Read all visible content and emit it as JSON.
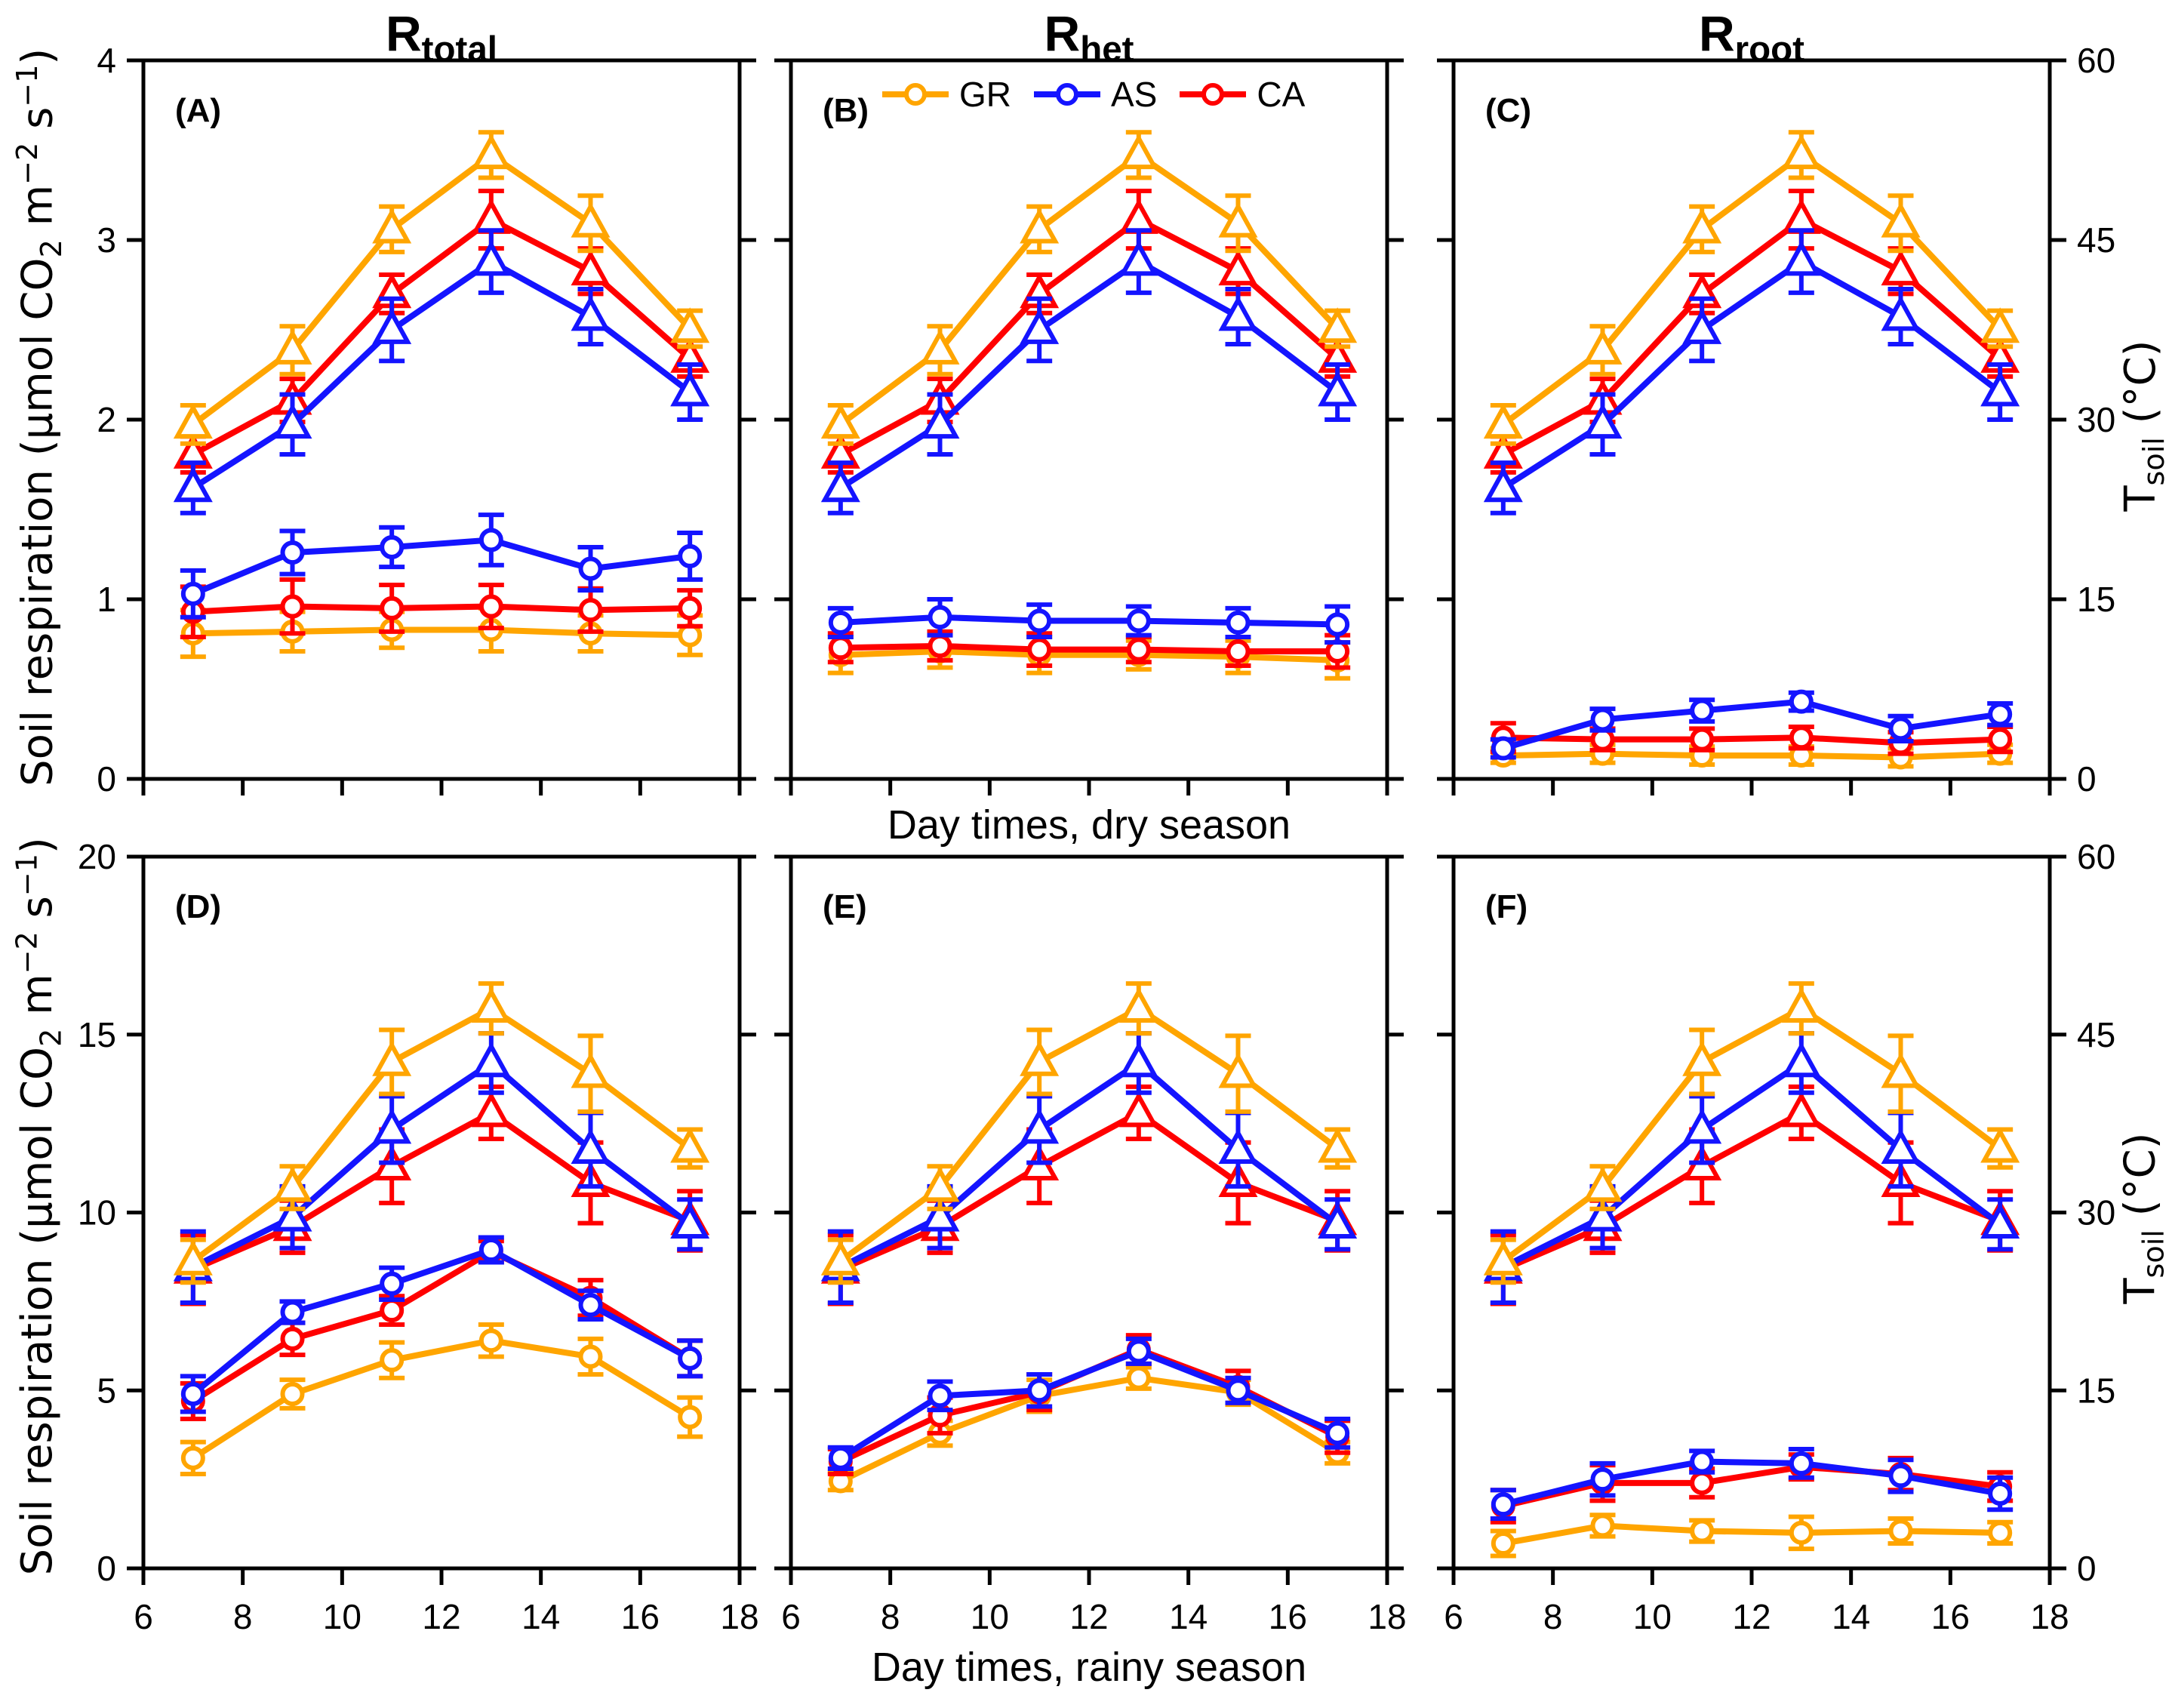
{
  "figure": {
    "column_titles": [
      {
        "base": "R",
        "sub": "total"
      },
      {
        "base": "R",
        "sub": "het"
      },
      {
        "base": "R",
        "sub": "root"
      }
    ],
    "row_captions": {
      "dry": "Day times, dry season",
      "rainy": "Day times, rainy season"
    },
    "left_axis_title_segments": [
      {
        "t": "Soil respiration (μmol CO"
      },
      {
        "sub": "2"
      },
      {
        "t": " m"
      },
      {
        "sup": "−2"
      },
      {
        "t": " s"
      },
      {
        "sup": "−1"
      },
      {
        "t": ")"
      }
    ],
    "right_axis_title_segments": [
      {
        "t": "T"
      },
      {
        "sub": "soil"
      },
      {
        "t": " (°C)"
      }
    ]
  },
  "legend": {
    "items": [
      {
        "label": "GR",
        "color": "#FFA500"
      },
      {
        "label": "AS",
        "color": "#1414FF"
      },
      {
        "label": "CA",
        "color": "#FF0000"
      }
    ]
  },
  "colors": {
    "GR": "#FFA500",
    "AS": "#1414FF",
    "CA": "#FF0000",
    "axis": "#000000"
  },
  "chart_data": [
    {
      "type": "line",
      "panel_label": "(A)",
      "season": "dry",
      "measure": "R_total",
      "x": [
        7,
        9,
        11,
        13,
        15,
        17
      ],
      "xlim": [
        6,
        18
      ],
      "x_ticks": [
        6,
        8,
        10,
        12,
        14,
        16,
        18
      ],
      "x_tick_labels_visible": false,
      "left_axis": {
        "lim": [
          0,
          4
        ],
        "ticks": [
          0,
          1,
          2,
          3,
          4
        ],
        "labels_visible": true
      },
      "right_axis": {
        "lim": [
          0,
          60
        ],
        "ticks": [
          0,
          15,
          30,
          45,
          60
        ],
        "labels_visible": false
      },
      "series": [
        {
          "name": "CA",
          "axis": "right",
          "marker": "triangle",
          "values": [
            27.1,
            31.6,
            40.5,
            46.7,
            42.4,
            35.1
          ],
          "errors": [
            1.5,
            1.8,
            1.6,
            2.4,
            1.9,
            1.5
          ]
        },
        {
          "name": "AS",
          "axis": "right",
          "marker": "triangle",
          "values": [
            24.3,
            29.6,
            37.5,
            43.2,
            38.6,
            32.3
          ],
          "errors": [
            2.1,
            2.5,
            2.6,
            2.6,
            2.3,
            2.3
          ]
        },
        {
          "name": "GR",
          "axis": "right",
          "marker": "triangle",
          "values": [
            29.6,
            35.8,
            45.9,
            52.1,
            46.4,
            37.6
          ],
          "errors": [
            1.6,
            2.0,
            1.9,
            1.9,
            2.3,
            1.5
          ]
        },
        {
          "name": "GR",
          "axis": "left",
          "marker": "circle",
          "values": [
            0.81,
            0.82,
            0.83,
            0.83,
            0.81,
            0.8
          ],
          "errors": [
            0.13,
            0.11,
            0.1,
            0.12,
            0.1,
            0.11
          ]
        },
        {
          "name": "CA",
          "axis": "left",
          "marker": "circle",
          "values": [
            0.93,
            0.96,
            0.95,
            0.96,
            0.94,
            0.95
          ],
          "errors": [
            0.14,
            0.15,
            0.13,
            0.12,
            0.12,
            0.1
          ]
        },
        {
          "name": "AS",
          "axis": "left",
          "marker": "circle",
          "values": [
            1.03,
            1.26,
            1.29,
            1.33,
            1.17,
            1.24
          ],
          "errors": [
            0.13,
            0.12,
            0.11,
            0.14,
            0.12,
            0.13
          ]
        }
      ]
    },
    {
      "type": "line",
      "panel_label": "(B)",
      "season": "dry",
      "measure": "R_het",
      "x": [
        7,
        9,
        11,
        13,
        15,
        17
      ],
      "xlim": [
        6,
        18
      ],
      "x_ticks": [
        6,
        8,
        10,
        12,
        14,
        16,
        18
      ],
      "x_tick_labels_visible": false,
      "left_axis": {
        "lim": [
          0,
          4
        ],
        "ticks": [
          0,
          1,
          2,
          3,
          4
        ],
        "labels_visible": false
      },
      "right_axis": {
        "lim": [
          0,
          60
        ],
        "ticks": [
          0,
          15,
          30,
          45,
          60
        ],
        "labels_visible": false
      },
      "series": [
        {
          "name": "CA",
          "axis": "right",
          "marker": "triangle",
          "values": [
            27.1,
            31.6,
            40.5,
            46.7,
            42.4,
            35.1
          ],
          "errors": [
            1.5,
            1.8,
            1.6,
            2.4,
            1.9,
            1.5
          ]
        },
        {
          "name": "AS",
          "axis": "right",
          "marker": "triangle",
          "values": [
            24.3,
            29.6,
            37.5,
            43.2,
            38.6,
            32.3
          ],
          "errors": [
            2.1,
            2.5,
            2.6,
            2.6,
            2.3,
            2.3
          ]
        },
        {
          "name": "GR",
          "axis": "right",
          "marker": "triangle",
          "values": [
            29.6,
            35.8,
            45.9,
            52.1,
            46.4,
            37.6
          ],
          "errors": [
            1.6,
            2.0,
            1.9,
            1.9,
            2.3,
            1.5
          ]
        },
        {
          "name": "GR",
          "axis": "left",
          "marker": "circle",
          "values": [
            0.69,
            0.71,
            0.69,
            0.69,
            0.68,
            0.66
          ],
          "errors": [
            0.1,
            0.09,
            0.1,
            0.08,
            0.09,
            0.1
          ]
        },
        {
          "name": "CA",
          "axis": "left",
          "marker": "circle",
          "values": [
            0.73,
            0.74,
            0.72,
            0.72,
            0.71,
            0.71
          ],
          "errors": [
            0.08,
            0.08,
            0.09,
            0.07,
            0.08,
            0.09
          ]
        },
        {
          "name": "AS",
          "axis": "left",
          "marker": "circle",
          "values": [
            0.87,
            0.9,
            0.88,
            0.88,
            0.87,
            0.86
          ],
          "errors": [
            0.08,
            0.1,
            0.09,
            0.08,
            0.08,
            0.1
          ]
        }
      ]
    },
    {
      "type": "line",
      "panel_label": "(C)",
      "season": "dry",
      "measure": "R_root",
      "x": [
        7,
        9,
        11,
        13,
        15,
        17
      ],
      "xlim": [
        6,
        18
      ],
      "x_ticks": [
        6,
        8,
        10,
        12,
        14,
        16,
        18
      ],
      "x_tick_labels_visible": false,
      "left_axis": {
        "lim": [
          0,
          4
        ],
        "ticks": [
          0,
          1,
          2,
          3,
          4
        ],
        "labels_visible": false
      },
      "right_axis": {
        "lim": [
          0,
          60
        ],
        "ticks": [
          0,
          15,
          30,
          45,
          60
        ],
        "labels_visible": true
      },
      "series": [
        {
          "name": "CA",
          "axis": "right",
          "marker": "triangle",
          "values": [
            27.1,
            31.6,
            40.5,
            46.7,
            42.4,
            35.1
          ],
          "errors": [
            1.5,
            1.8,
            1.6,
            2.4,
            1.9,
            1.5
          ]
        },
        {
          "name": "AS",
          "axis": "right",
          "marker": "triangle",
          "values": [
            24.3,
            29.6,
            37.5,
            43.2,
            38.6,
            32.3
          ],
          "errors": [
            2.1,
            2.5,
            2.6,
            2.6,
            2.3,
            2.3
          ]
        },
        {
          "name": "GR",
          "axis": "right",
          "marker": "triangle",
          "values": [
            29.6,
            35.8,
            45.9,
            52.1,
            46.4,
            37.6
          ],
          "errors": [
            1.6,
            2.0,
            1.9,
            1.9,
            2.3,
            1.5
          ]
        },
        {
          "name": "GR",
          "axis": "left",
          "marker": "circle",
          "values": [
            0.13,
            0.14,
            0.13,
            0.13,
            0.12,
            0.14
          ],
          "errors": [
            0.04,
            0.05,
            0.05,
            0.05,
            0.05,
            0.05
          ]
        },
        {
          "name": "CA",
          "axis": "left",
          "marker": "circle",
          "values": [
            0.23,
            0.22,
            0.22,
            0.23,
            0.2,
            0.22
          ],
          "errors": [
            0.08,
            0.06,
            0.06,
            0.06,
            0.06,
            0.07
          ]
        },
        {
          "name": "AS",
          "axis": "left",
          "marker": "circle",
          "values": [
            0.17,
            0.33,
            0.38,
            0.43,
            0.28,
            0.36
          ],
          "errors": [
            0.05,
            0.06,
            0.06,
            0.05,
            0.07,
            0.06
          ]
        }
      ]
    },
    {
      "type": "line",
      "panel_label": "(D)",
      "season": "rainy",
      "measure": "R_total",
      "x": [
        7,
        9,
        11,
        13,
        15,
        17
      ],
      "xlim": [
        6,
        18
      ],
      "x_ticks": [
        6,
        8,
        10,
        12,
        14,
        16,
        18
      ],
      "x_tick_labels_visible": true,
      "left_axis": {
        "lim": [
          0,
          20
        ],
        "ticks": [
          0,
          5,
          10,
          15,
          20
        ],
        "labels_visible": true
      },
      "right_axis": {
        "lim": [
          0,
          60
        ],
        "ticks": [
          0,
          15,
          30,
          45,
          60
        ],
        "labels_visible": false
      },
      "series": [
        {
          "name": "CA",
          "axis": "right",
          "marker": "triangle",
          "values": [
            25.2,
            28.8,
            33.9,
            38.4,
            32.5,
            29.3
          ],
          "errors": [
            2.9,
            2.2,
            3.1,
            2.2,
            3.4,
            2.5
          ]
        },
        {
          "name": "AS",
          "axis": "right",
          "marker": "triangle",
          "values": [
            25.4,
            29.6,
            37.0,
            42.6,
            35.3,
            29.0
          ],
          "errors": [
            3.0,
            2.6,
            2.8,
            2.5,
            3.1,
            2.1
          ]
        },
        {
          "name": "GR",
          "axis": "right",
          "marker": "triangle",
          "values": [
            25.9,
            32.1,
            42.7,
            47.2,
            41.7,
            35.4
          ],
          "errors": [
            1.8,
            1.8,
            2.7,
            2.1,
            3.2,
            1.6
          ]
        },
        {
          "name": "GR",
          "axis": "left",
          "marker": "circle",
          "values": [
            3.1,
            4.9,
            5.85,
            6.4,
            5.95,
            4.25
          ],
          "errors": [
            0.45,
            0.4,
            0.5,
            0.45,
            0.5,
            0.55
          ]
        },
        {
          "name": "CA",
          "axis": "left",
          "marker": "circle",
          "values": [
            4.7,
            6.45,
            7.25,
            8.9,
            7.6,
            5.9
          ],
          "errors": [
            0.5,
            0.45,
            0.4,
            0.3,
            0.5,
            0.5
          ]
        },
        {
          "name": "AS",
          "axis": "left",
          "marker": "circle",
          "values": [
            4.9,
            7.2,
            8.0,
            8.95,
            7.4,
            5.9
          ],
          "errors": [
            0.5,
            0.3,
            0.45,
            0.35,
            0.4,
            0.5
          ]
        }
      ]
    },
    {
      "type": "line",
      "panel_label": "(E)",
      "season": "rainy",
      "measure": "R_het",
      "x": [
        7,
        9,
        11,
        13,
        15,
        17
      ],
      "xlim": [
        6,
        18
      ],
      "x_ticks": [
        6,
        8,
        10,
        12,
        14,
        16,
        18
      ],
      "x_tick_labels_visible": true,
      "left_axis": {
        "lim": [
          0,
          20
        ],
        "ticks": [
          0,
          5,
          10,
          15,
          20
        ],
        "labels_visible": false
      },
      "right_axis": {
        "lim": [
          0,
          60
        ],
        "ticks": [
          0,
          15,
          30,
          45,
          60
        ],
        "labels_visible": false
      },
      "series": [
        {
          "name": "CA",
          "axis": "right",
          "marker": "triangle",
          "values": [
            25.2,
            28.8,
            33.9,
            38.4,
            32.5,
            29.3
          ],
          "errors": [
            2.9,
            2.2,
            3.1,
            2.2,
            3.4,
            2.5
          ]
        },
        {
          "name": "AS",
          "axis": "right",
          "marker": "triangle",
          "values": [
            25.4,
            29.6,
            37.0,
            42.6,
            35.3,
            29.0
          ],
          "errors": [
            3.0,
            2.6,
            2.8,
            2.5,
            3.1,
            2.1
          ]
        },
        {
          "name": "GR",
          "axis": "right",
          "marker": "triangle",
          "values": [
            25.9,
            32.1,
            42.7,
            47.2,
            41.7,
            35.4
          ],
          "errors": [
            1.8,
            1.8,
            2.7,
            2.1,
            3.2,
            1.6
          ]
        },
        {
          "name": "GR",
          "axis": "left",
          "marker": "circle",
          "values": [
            2.45,
            3.8,
            4.85,
            5.35,
            4.95,
            3.25
          ],
          "errors": [
            0.25,
            0.35,
            0.45,
            0.3,
            0.35,
            0.3
          ]
        },
        {
          "name": "CA",
          "axis": "left",
          "marker": "circle",
          "values": [
            3.0,
            4.3,
            4.95,
            6.15,
            5.1,
            3.7
          ],
          "errors": [
            0.35,
            0.5,
            0.5,
            0.4,
            0.45,
            0.45
          ]
        },
        {
          "name": "AS",
          "axis": "left",
          "marker": "circle",
          "values": [
            3.1,
            4.85,
            5.0,
            6.1,
            5.0,
            3.8
          ],
          "errors": [
            0.3,
            0.4,
            0.45,
            0.35,
            0.35,
            0.4
          ]
        }
      ]
    },
    {
      "type": "line",
      "panel_label": "(F)",
      "season": "rainy",
      "measure": "R_root",
      "x": [
        7,
        9,
        11,
        13,
        15,
        17
      ],
      "xlim": [
        6,
        18
      ],
      "x_ticks": [
        6,
        8,
        10,
        12,
        14,
        16,
        18
      ],
      "x_tick_labels_visible": true,
      "left_axis": {
        "lim": [
          0,
          20
        ],
        "ticks": [
          0,
          5,
          10,
          15,
          20
        ],
        "labels_visible": false
      },
      "right_axis": {
        "lim": [
          0,
          60
        ],
        "ticks": [
          0,
          15,
          30,
          45,
          60
        ],
        "labels_visible": true
      },
      "series": [
        {
          "name": "CA",
          "axis": "right",
          "marker": "triangle",
          "values": [
            25.2,
            28.8,
            33.9,
            38.4,
            32.5,
            29.3
          ],
          "errors": [
            2.9,
            2.2,
            3.1,
            2.2,
            3.4,
            2.5
          ]
        },
        {
          "name": "AS",
          "axis": "right",
          "marker": "triangle",
          "values": [
            25.4,
            29.6,
            37.0,
            42.6,
            35.3,
            29.0
          ],
          "errors": [
            3.0,
            2.6,
            2.8,
            2.5,
            3.1,
            2.1
          ]
        },
        {
          "name": "GR",
          "axis": "right",
          "marker": "triangle",
          "values": [
            25.9,
            32.1,
            42.7,
            47.2,
            41.7,
            35.4
          ],
          "errors": [
            1.8,
            1.8,
            2.7,
            2.1,
            3.2,
            1.6
          ]
        },
        {
          "name": "GR",
          "axis": "left",
          "marker": "circle",
          "values": [
            0.7,
            1.2,
            1.05,
            1.0,
            1.05,
            1.0
          ],
          "errors": [
            0.35,
            0.3,
            0.3,
            0.45,
            0.35,
            0.3
          ]
        },
        {
          "name": "CA",
          "axis": "left",
          "marker": "circle",
          "values": [
            1.75,
            2.4,
            2.4,
            2.85,
            2.65,
            2.3
          ],
          "errors": [
            0.45,
            0.5,
            0.4,
            0.35,
            0.45,
            0.4
          ]
        },
        {
          "name": "AS",
          "axis": "left",
          "marker": "circle",
          "values": [
            1.8,
            2.5,
            3.0,
            2.95,
            2.6,
            2.1
          ],
          "errors": [
            0.4,
            0.45,
            0.3,
            0.4,
            0.45,
            0.45
          ]
        }
      ]
    }
  ]
}
